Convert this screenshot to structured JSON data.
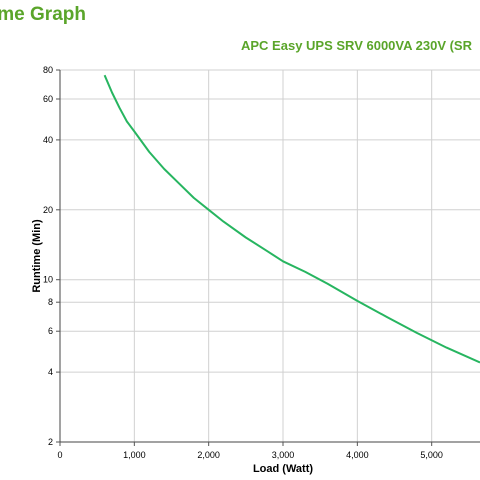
{
  "page": {
    "title": "ime Graph",
    "chart_title": "APC Easy UPS SRV 6000VA 230V (SR"
  },
  "chart_data": {
    "type": "line",
    "title": "APC Easy UPS SRV 6000VA 230V (SR",
    "xlabel": "Load (Watt)",
    "ylabel": "Runtime (Min)",
    "x_scale": "linear",
    "y_scale": "log",
    "xlim": [
      0,
      5650
    ],
    "ylim": [
      2,
      80
    ],
    "grid": true,
    "line_color": "#27b560",
    "x_ticks": [
      0,
      1000,
      2000,
      3000,
      4000,
      5000
    ],
    "x_tick_labels": [
      "0",
      "1,000",
      "2,000",
      "3,000",
      "4,000",
      "5,000"
    ],
    "y_ticks": [
      2,
      4,
      6,
      8,
      10,
      20,
      40,
      60,
      80
    ],
    "y_tick_labels": [
      "2",
      "4",
      "6",
      "8",
      "10",
      "20",
      "40",
      "60",
      "80"
    ],
    "series": [
      {
        "x": [
          600,
          700,
          800,
          900,
          1000,
          1200,
          1400,
          1600,
          1800,
          2000,
          2200,
          2500,
          2800,
          3000,
          3300,
          3600,
          4000,
          4400,
          4800,
          5200,
          5650
        ],
        "values": [
          76,
          64,
          55,
          48,
          43.5,
          35.5,
          30,
          26,
          22.5,
          20,
          17.8,
          15.2,
          13.2,
          12,
          10.8,
          9.6,
          8.1,
          6.9,
          5.9,
          5.1,
          4.4
        ]
      }
    ]
  }
}
